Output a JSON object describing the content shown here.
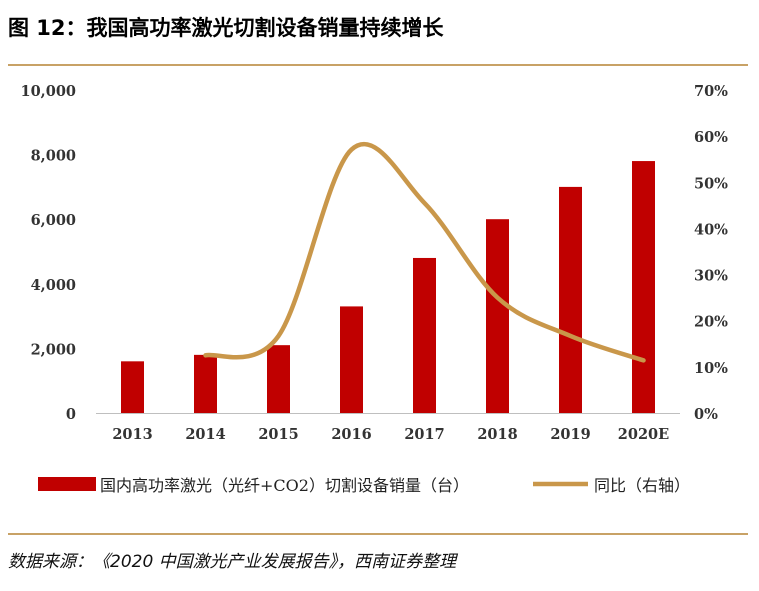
{
  "header": {
    "title": "图 12：我国高功率激光切割设备销量持续增长"
  },
  "footer": {
    "source": "数据来源：《2020 中国激光产业发展报告》，西南证券整理"
  },
  "chart_data": {
    "type": "bar",
    "title": "",
    "xlabel": "",
    "ylabel": "",
    "categories": [
      "2013",
      "2014",
      "2015",
      "2016",
      "2017",
      "2018",
      "2019",
      "2020E"
    ],
    "y_ticks": [
      "0",
      "2,000",
      "4,000",
      "6,000",
      "8,000",
      "10,000"
    ],
    "y2_ticks": [
      "0%",
      "10%",
      "20%",
      "30%",
      "40%",
      "50%",
      "60%",
      "70%"
    ],
    "ylim": [
      0,
      10000
    ],
    "y2lim": [
      0,
      70
    ],
    "series": [
      {
        "name": "国内高功率激光（光纤+CO2）切割设备销量（台）",
        "type": "bar",
        "axis": "left",
        "color": "#c00000",
        "values": [
          1600,
          1800,
          2100,
          3300,
          4800,
          6000,
          7000,
          7800
        ]
      },
      {
        "name": "同比（右轴）",
        "type": "line",
        "axis": "right",
        "color": "#c9974a",
        "start_index": 1,
        "values": [
          null,
          12.5,
          16.7,
          57.1,
          45.5,
          25.0,
          16.7,
          11.4
        ]
      }
    ],
    "grid": false,
    "legend_position": "bottom"
  }
}
